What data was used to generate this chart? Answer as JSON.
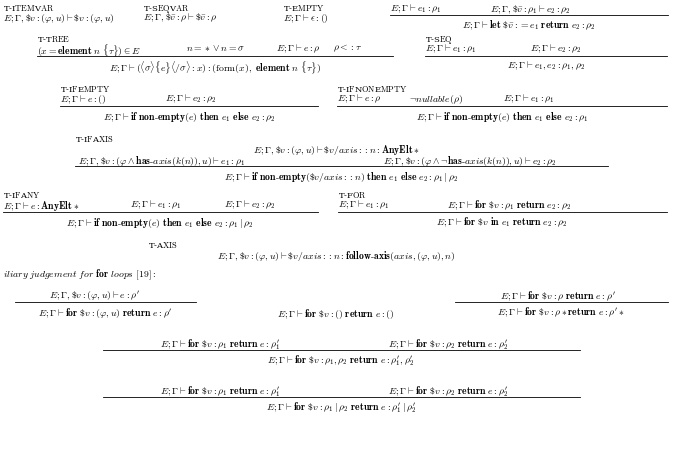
{
  "bg": "white",
  "tc": "black",
  "fs": 7.0,
  "lfs": 6.0
}
